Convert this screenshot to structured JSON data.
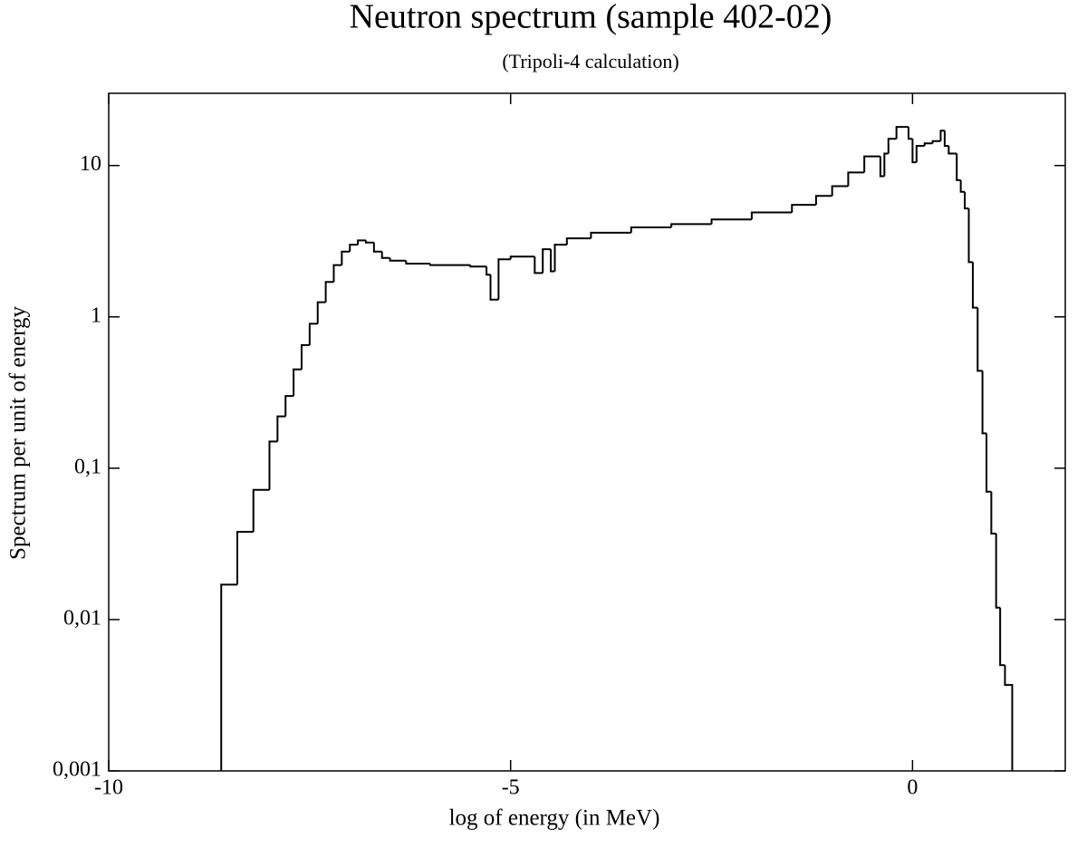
{
  "chart_data": {
    "type": "histogram",
    "title": "Neutron spectrum (sample 402-02)",
    "subtitle": "(Tripoli-4 calculation)",
    "x_label": "log of energy (in MeV)",
    "y_label": "Spectrum per unit of energy",
    "color": "#000000",
    "log_y": true,
    "grid": false,
    "xlim": [
      -10,
      1.9
    ],
    "xticks": [
      -10,
      -5,
      0
    ],
    "ylim": [
      0.001,
      30
    ],
    "yticks": [
      {
        "value": 0.001,
        "label": "0,001"
      },
      {
        "value": 0.01,
        "label": "0,01"
      },
      {
        "value": 0.1,
        "label": "0,1"
      },
      1,
      10
    ],
    "bins": [
      -8.6,
      -8.4,
      -8.2,
      -8.0,
      -7.9,
      -7.8,
      -7.7,
      -7.6,
      -7.5,
      -7.4,
      -7.3,
      -7.2,
      -7.1,
      -7.0,
      -6.9,
      -6.8,
      -6.7,
      -6.6,
      -6.5,
      -6.3,
      -6.0,
      -5.5,
      -5.3,
      -5.25,
      -5.15,
      -5.0,
      -4.7,
      -4.6,
      -4.5,
      -4.45,
      -4.3,
      -4.0,
      -3.5,
      -3.0,
      -2.5,
      -2.0,
      -1.5,
      -1.2,
      -1.0,
      -0.8,
      -0.6,
      -0.4,
      -0.35,
      -0.3,
      -0.2,
      -0.05,
      0.0,
      0.05,
      0.15,
      0.25,
      0.35,
      0.4,
      0.45,
      0.55,
      0.6,
      0.65,
      0.7,
      0.75,
      0.81,
      0.87,
      0.92,
      0.98,
      1.04,
      1.09,
      1.15,
      1.24
    ],
    "counts": [
      0.017,
      0.038,
      0.072,
      0.15,
      0.22,
      0.3,
      0.45,
      0.65,
      0.9,
      1.25,
      1.7,
      2.2,
      2.7,
      3.0,
      3.2,
      3.1,
      2.7,
      2.45,
      2.35,
      2.25,
      2.2,
      2.15,
      1.9,
      1.3,
      2.4,
      2.5,
      1.95,
      2.8,
      2.0,
      3.0,
      3.3,
      3.6,
      3.9,
      4.1,
      4.4,
      4.9,
      5.5,
      6.3,
      7.3,
      9.0,
      11.5,
      8.5,
      12,
      15,
      18,
      15,
      10.5,
      13.5,
      14,
      14.5,
      17,
      13.5,
      12,
      8,
      6.7,
      5.2,
      2.3,
      1.15,
      0.44,
      0.17,
      0.07,
      0.037,
      0.012,
      0.005,
      0.0037
    ]
  }
}
